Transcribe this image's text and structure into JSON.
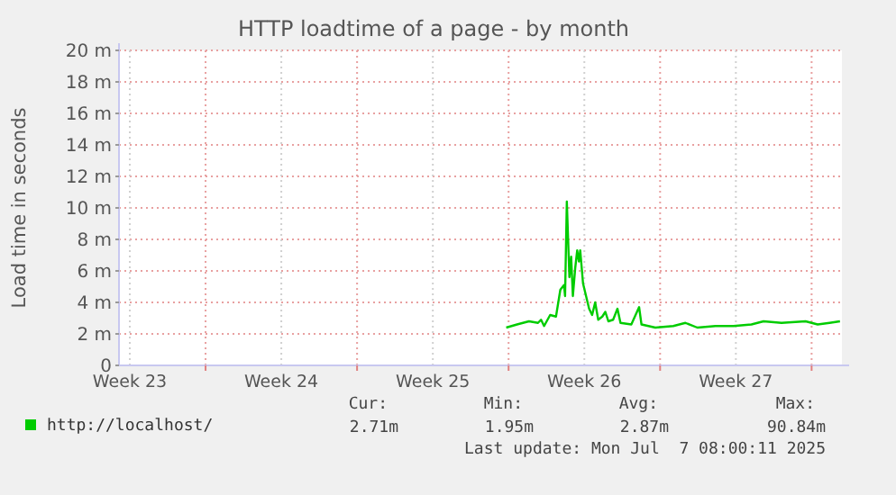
{
  "chart_data": {
    "type": "line",
    "title": "HTTP loadtime of a page - by month",
    "ylabel": "Load time in seconds",
    "xlim": [
      "2025-06-05T00:00",
      "2025-07-08T09:36"
    ],
    "xticks": [
      {
        "value": "2025-06-05T12:00",
        "label": "Week 23"
      },
      {
        "value": "2025-06-09T00:00",
        "label": null
      },
      {
        "value": "2025-06-12T12:00",
        "label": "Week 24"
      },
      {
        "value": "2025-06-16T00:00",
        "label": null
      },
      {
        "value": "2025-06-19T12:00",
        "label": "Week 25"
      },
      {
        "value": "2025-06-23T00:00",
        "label": null
      },
      {
        "value": "2025-06-26T12:00",
        "label": "Week 26"
      },
      {
        "value": "2025-06-30T00:00",
        "label": null
      },
      {
        "value": "2025-07-03T12:00",
        "label": "Week 27"
      },
      {
        "value": "2025-07-07T00:00",
        "label": null
      }
    ],
    "ylim": [
      0,
      20
    ],
    "yticks": [
      {
        "value": 0,
        "label": "0"
      },
      {
        "value": 2,
        "label": "2 m"
      },
      {
        "value": 4,
        "label": "4 m"
      },
      {
        "value": 6,
        "label": "6 m"
      },
      {
        "value": 8,
        "label": "8 m"
      },
      {
        "value": 10,
        "label": "10 m"
      },
      {
        "value": 12,
        "label": "12 m"
      },
      {
        "value": 14,
        "label": "14 m"
      },
      {
        "value": 16,
        "label": "16 m"
      },
      {
        "value": 18,
        "label": "18 m"
      },
      {
        "value": 20,
        "label": "20 m"
      }
    ],
    "grid": true,
    "legend": "bottom",
    "marker": "none",
    "line_style": "solid",
    "series": [
      {
        "name": "http://localhost/",
        "color": "#00cc00",
        "x": [
          "2025-06-22T21:22",
          "2025-06-23T09:22",
          "2025-06-23T22:34",
          "2025-06-24T08:38",
          "2025-06-24T12:00",
          "2025-06-24T15:22",
          "2025-06-24T22:05",
          "2025-06-25T04:34",
          "2025-06-25T09:22",
          "2025-06-25T13:26",
          "2025-06-25T14:38",
          "2025-06-25T16:34",
          "2025-06-25T19:26",
          "2025-06-25T21:22",
          "2025-06-25T23:17",
          "2025-06-26T01:55",
          "2025-06-26T04:05",
          "2025-06-26T06:00",
          "2025-06-26T07:26",
          "2025-06-26T10:34",
          "2025-06-26T13:55",
          "2025-06-26T17:17",
          "2025-06-26T20:38",
          "2025-06-27T00:00",
          "2025-06-27T03:22",
          "2025-06-27T07:55",
          "2025-06-27T11:17",
          "2025-06-27T14:38",
          "2025-06-27T19:55",
          "2025-06-28T00:43",
          "2025-06-28T04:05",
          "2025-06-28T16:05",
          "2025-06-29T00:43",
          "2025-06-29T03:22",
          "2025-06-29T18:43",
          "2025-06-30T14:38",
          "2025-07-01T04:05",
          "2025-07-01T17:17",
          "2025-07-02T13:26",
          "2025-07-03T09:22",
          "2025-07-04T05:17",
          "2025-07-04T18:43",
          "2025-07-05T14:38",
          "2025-07-06T17:17",
          "2025-07-07T06:43",
          "2025-07-07T19:55",
          "2025-07-08T07:26"
        ],
        "values": [
          2.4,
          2.6,
          2.8,
          2.7,
          2.9,
          2.5,
          3.2,
          3.1,
          4.8,
          5.1,
          4.4,
          10.4,
          5.6,
          6.9,
          4.4,
          6.2,
          7.3,
          6.6,
          7.3,
          5.2,
          4.4,
          3.6,
          3.2,
          4.0,
          2.9,
          3.1,
          3.4,
          2.8,
          2.9,
          3.6,
          2.7,
          2.6,
          3.7,
          2.6,
          2.4,
          2.5,
          2.7,
          2.4,
          2.5,
          2.5,
          2.6,
          2.8,
          2.7,
          2.8,
          2.6,
          2.7,
          2.8
        ]
      }
    ],
    "annotations": [
      "Cur:",
      "Min:",
      "Avg:",
      "Max:",
      "2.71m",
      "1.95m",
      "2.87m",
      "90.84m",
      "Last update: Mon Jul  7 08:00:11 2025"
    ]
  }
}
